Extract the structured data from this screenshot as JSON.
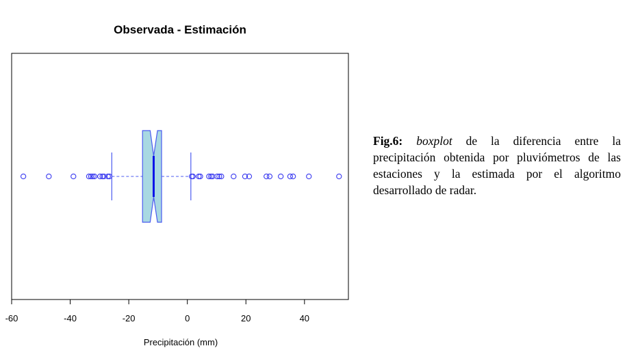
{
  "chart_data": {
    "type": "boxplot",
    "title": "Observada - Estimación",
    "xlabel": "Precipitación (mm)",
    "ylabel": "",
    "orientation": "horizontal",
    "notched": true,
    "xlim": [
      -60,
      55
    ],
    "xticks": [
      -60,
      -40,
      -20,
      0,
      20,
      40
    ],
    "tick_labels": [
      "-60",
      "-40",
      "-20",
      "0",
      "20",
      "40"
    ],
    "box": {
      "whisker_low": -25.8,
      "q1": -15.3,
      "notch_low": -12.7,
      "median": -11.5,
      "notch_high": -10.2,
      "q3": -8.8,
      "whisker_high": 1.2
    },
    "outliers": [
      -56.0,
      -47.3,
      -38.9,
      -33.6,
      -32.9,
      -32.3,
      -31.7,
      -29.8,
      -29.0,
      -28.5,
      -27.1,
      -26.6,
      1.5,
      1.9,
      3.9,
      4.4,
      7.4,
      8.1,
      8.6,
      10.2,
      10.9,
      11.6,
      15.8,
      19.7,
      21.1,
      27.0,
      28.1,
      31.9,
      35.1,
      36.1,
      41.5,
      51.8
    ],
    "colors": {
      "box_fill": "#a8d8e2",
      "box_stroke": "#4b5bf0",
      "median": "#0a14e8",
      "points": "#3a3af0",
      "frame": "#000000"
    }
  },
  "caption": {
    "fig_num": "Fig.6:",
    "italic": "boxplot",
    "rest": " de la diferencia entre la precipitación obtenida por pluviómetros de las estaciones y la estimada por el algoritmo desarrollado de radar."
  }
}
